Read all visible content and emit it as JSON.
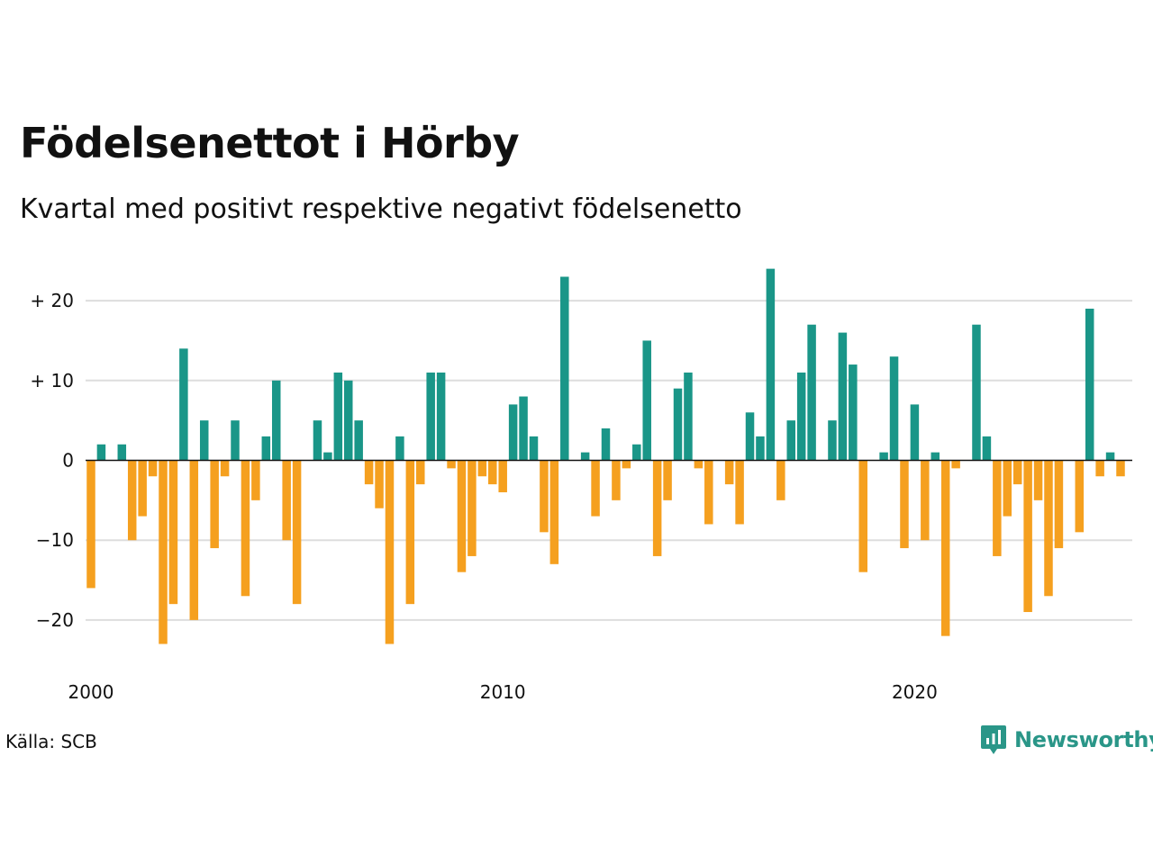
{
  "title": "Födelsenettot i Hörby",
  "subtitle": "Kvartal med positivt respektive negativt födelsenetto",
  "source": "Källa: SCB",
  "logo": {
    "text": "Newsworthy",
    "icon": "chart-bubble-icon"
  },
  "colors": {
    "positive": "#1a9688",
    "negative": "#f5a01f",
    "grid": "#dddddd",
    "zero": "#111111"
  },
  "chart_data": {
    "type": "bar",
    "title": "Födelsenettot i Hörby",
    "subtitle": "Kvartal med positivt respektive negativt födelsenetto",
    "xlabel": "",
    "ylabel": "",
    "ylim": [
      -25,
      25
    ],
    "x_start_year": 2000,
    "periods_per_year": 4,
    "y_ticks": [
      {
        "value": 20,
        "label": "+ 20"
      },
      {
        "value": 10,
        "label": "+ 10"
      },
      {
        "value": 0,
        "label": "0"
      },
      {
        "value": -10,
        "label": "−10"
      },
      {
        "value": -20,
        "label": "−20"
      }
    ],
    "x_ticks": [
      {
        "value": 2000,
        "label": "2000"
      },
      {
        "value": 2010,
        "label": "2010"
      },
      {
        "value": 2020,
        "label": "2020"
      }
    ],
    "grid": true,
    "values": [
      -16,
      2,
      0,
      2,
      -10,
      -7,
      -2,
      -23,
      -18,
      14,
      -20,
      5,
      -11,
      -2,
      5,
      -17,
      -5,
      3,
      10,
      -10,
      -18,
      0,
      5,
      1,
      11,
      10,
      5,
      -3,
      -6,
      -23,
      3,
      -18,
      -3,
      11,
      11,
      -1,
      -14,
      -12,
      -2,
      -3,
      -4,
      7,
      8,
      3,
      -9,
      -13,
      23,
      0,
      1,
      -7,
      4,
      -5,
      -1,
      2,
      15,
      -12,
      -5,
      9,
      11,
      -1,
      -8,
      0,
      -3,
      -8,
      6,
      3,
      24,
      -5,
      5,
      11,
      17,
      0,
      5,
      16,
      12,
      -14,
      0,
      1,
      13,
      -11,
      7,
      -10,
      1,
      -22,
      -1,
      0,
      17,
      3,
      -12,
      -7,
      -3,
      -19,
      -5,
      -17,
      -11,
      0,
      -9,
      19,
      -2,
      1,
      -2
    ]
  }
}
